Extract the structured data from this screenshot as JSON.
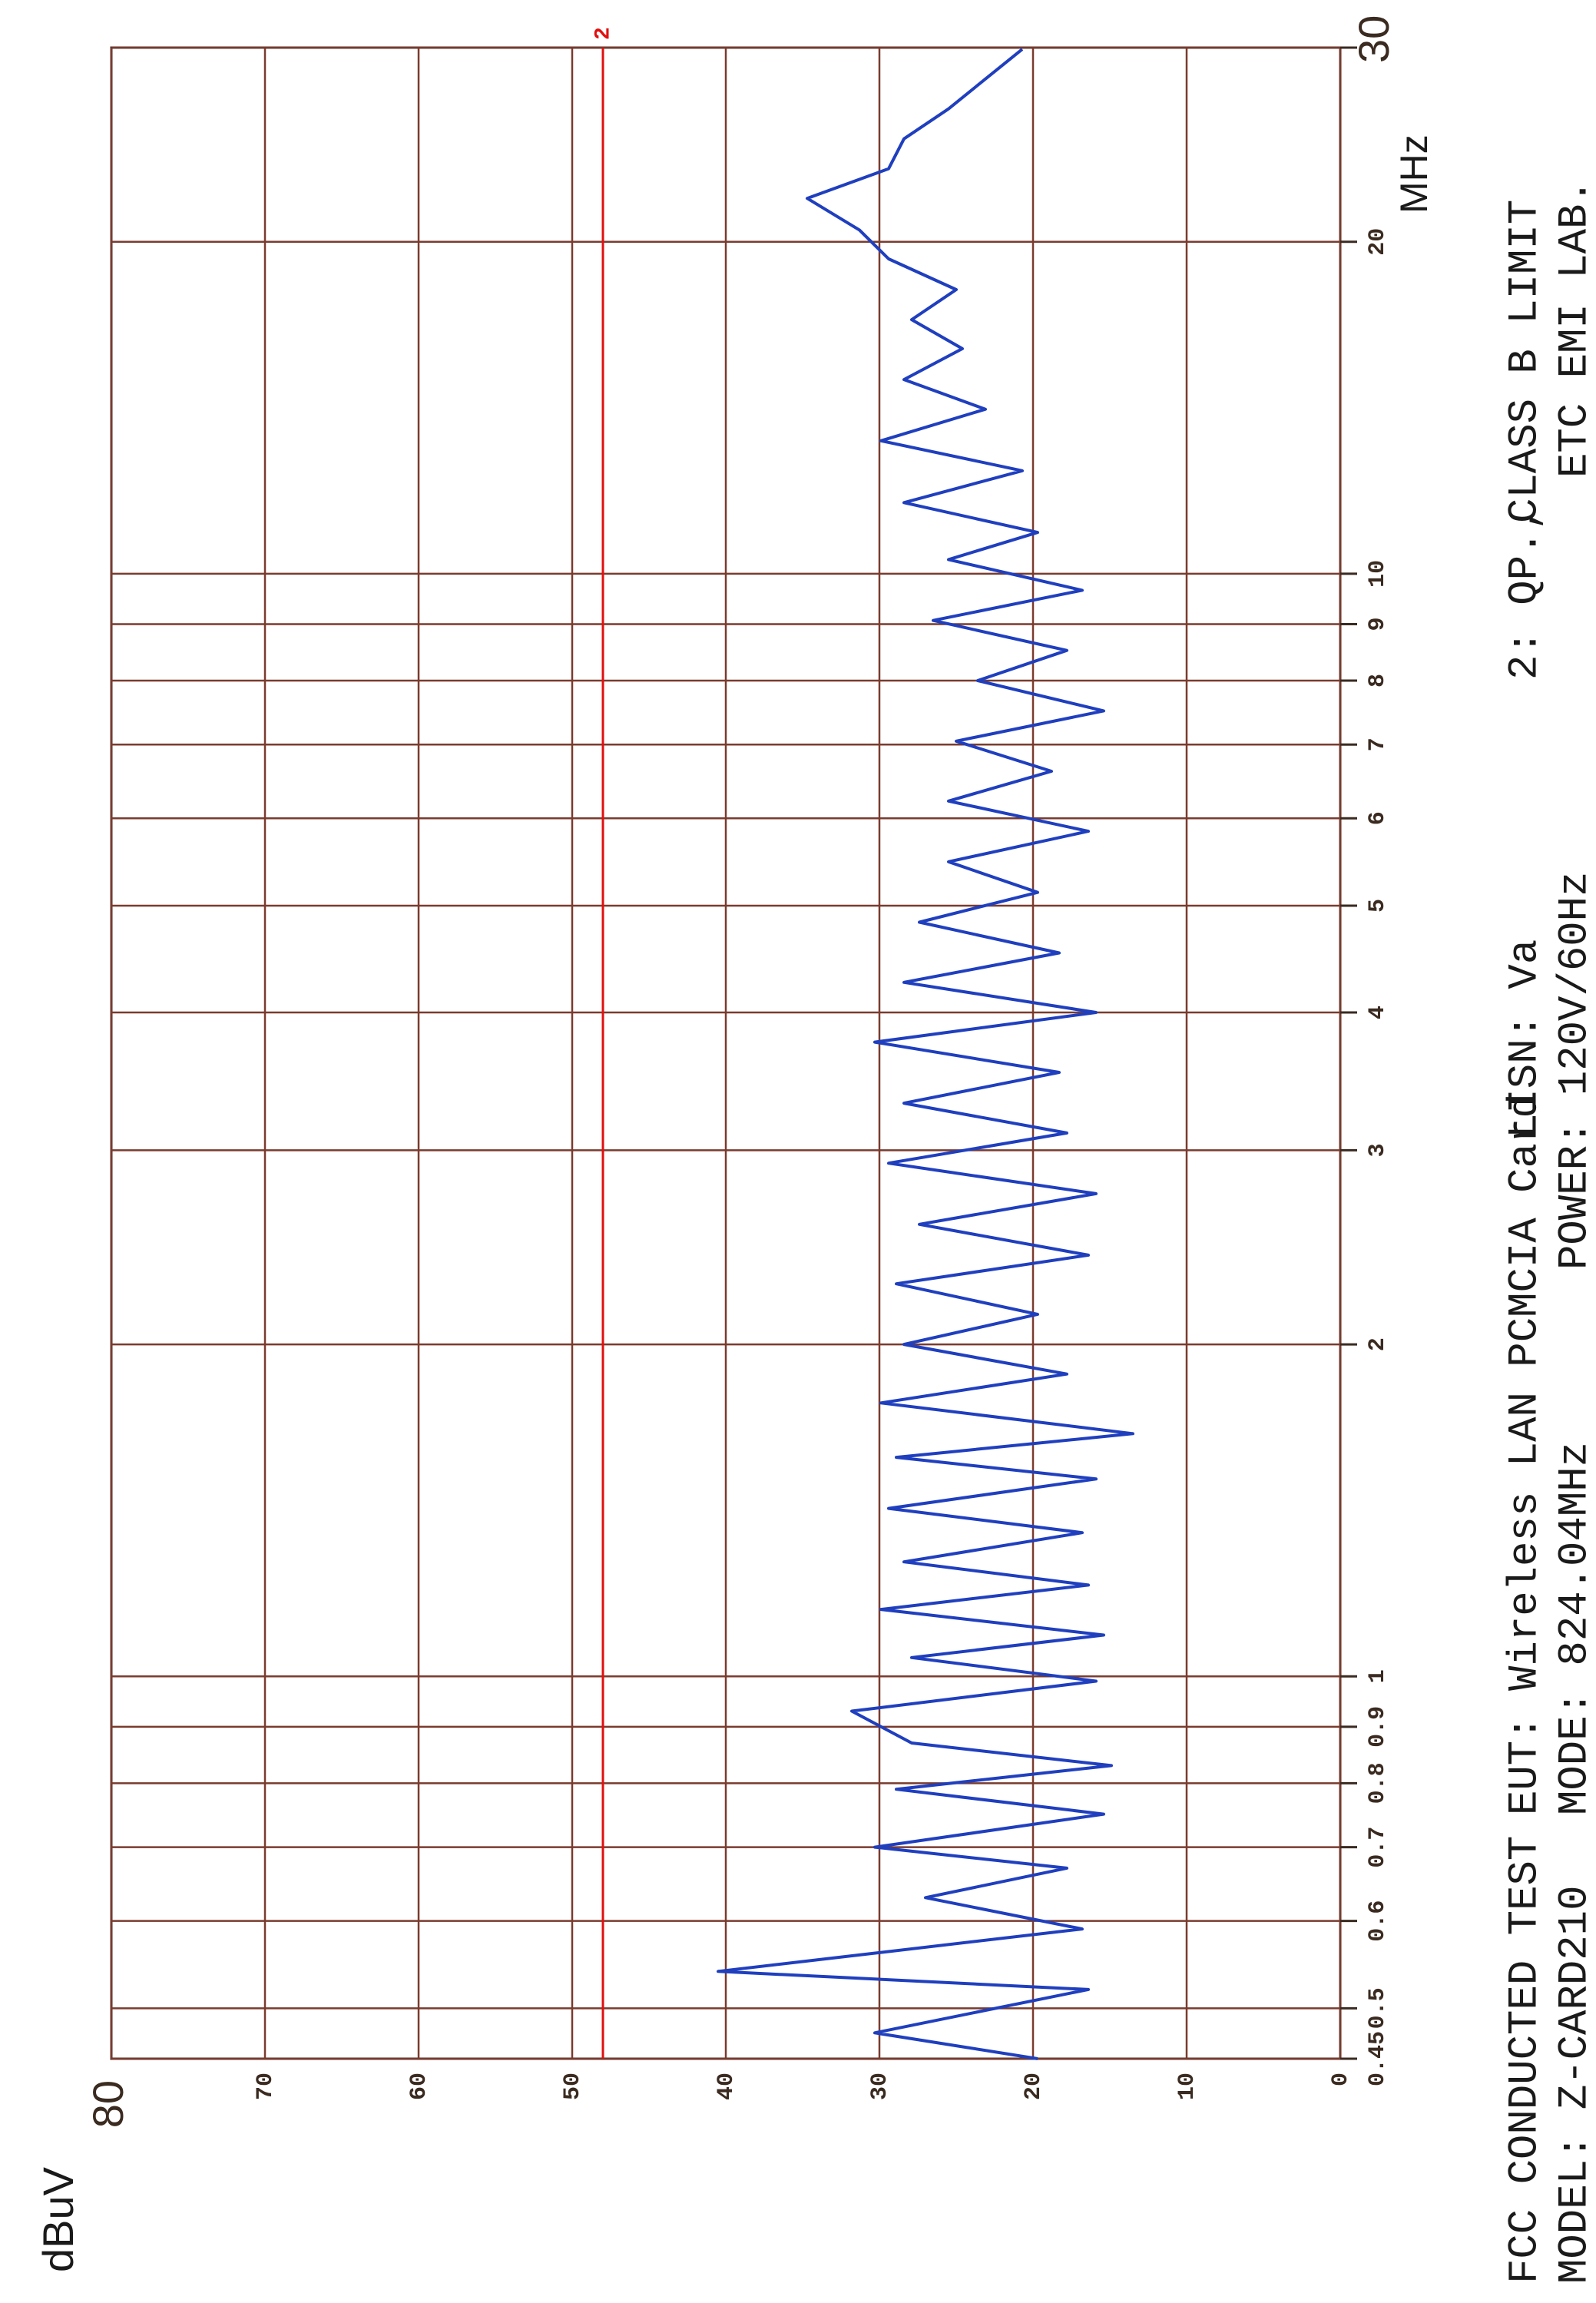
{
  "chart_data": {
    "type": "line",
    "title": "FCC CONDUCTED TEST",
    "subtitle": "MODEL: Z-CARD210",
    "annotations": [
      "EUT: Wireless LAN PCMCIA Card",
      "MODE: 824.04MHz",
      "LISN: Va",
      "POWER: 120V/60Hz",
      "2: QP.,",
      "CLASS B LIMIT",
      "ETC EMI LAB."
    ],
    "ylabel": "dBuV",
    "xlabel": "MHz",
    "log_x": true,
    "grid": true,
    "grid_color": "#7a3b2e",
    "xlim": [
      0.45,
      30
    ],
    "xticks": [
      0.45,
      0.5,
      0.6,
      0.7,
      0.8,
      0.9,
      1,
      2,
      3,
      4,
      5,
      6,
      7,
      8,
      9,
      10,
      20,
      30
    ],
    "ylim": [
      0,
      80
    ],
    "yticks": [
      0,
      10,
      20,
      30,
      40,
      50,
      60,
      70,
      80
    ],
    "x": [
      0.45,
      0.475,
      0.52,
      0.54,
      0.59,
      0.63,
      0.67,
      0.7,
      0.75,
      0.79,
      0.83,
      0.87,
      0.93,
      0.99,
      1.04,
      1.09,
      1.15,
      1.21,
      1.27,
      1.35,
      1.42,
      1.51,
      1.58,
      1.66,
      1.77,
      1.88,
      2.0,
      2.13,
      2.27,
      2.41,
      2.57,
      2.74,
      2.92,
      3.11,
      3.31,
      3.53,
      3.76,
      4.0,
      4.26,
      4.53,
      4.83,
      5.14,
      5.48,
      5.84,
      6.22,
      6.62,
      7.05,
      7.51,
      8.0,
      8.52,
      9.07,
      9.66,
      10.3,
      10.9,
      11.6,
      12.4,
      13.2,
      14.1,
      15.0,
      16.0,
      17.0,
      18.1,
      19.3,
      20.5,
      21.9,
      23.3,
      24.8,
      26.4,
      28.1,
      29.9
    ],
    "series": [
      {
        "color": "#1f3fbf",
        "values": [
          19.7,
          30.3,
          16.4,
          40.5,
          16.8,
          27,
          17.8,
          30.3,
          15.4,
          28.9,
          14.9,
          27.9,
          31.8,
          15.9,
          27.9,
          15.4,
          29.9,
          16.4,
          28.4,
          16.8,
          29.4,
          15.9,
          28.9,
          13.5,
          29.9,
          17.8,
          28.4,
          19.7,
          28.9,
          16.4,
          27.4,
          15.9,
          29.4,
          17.8,
          28.4,
          18.3,
          30.3,
          15.9,
          28.4,
          18.3,
          27.4,
          19.7,
          25.5,
          16.4,
          25.5,
          18.8,
          25,
          15.4,
          23.6,
          17.8,
          26.5,
          16.8,
          25.5,
          19.7,
          28.4,
          20.7,
          29.9,
          23.1,
          28.4,
          24.6,
          27.9,
          25,
          29.4,
          31.3,
          34.7,
          29.4,
          28.4,
          25.5,
          23.1,
          20.7
        ]
      }
    ],
    "limit_lines": [
      {
        "label": "2",
        "value": 48,
        "color": "#e01010"
      }
    ]
  }
}
